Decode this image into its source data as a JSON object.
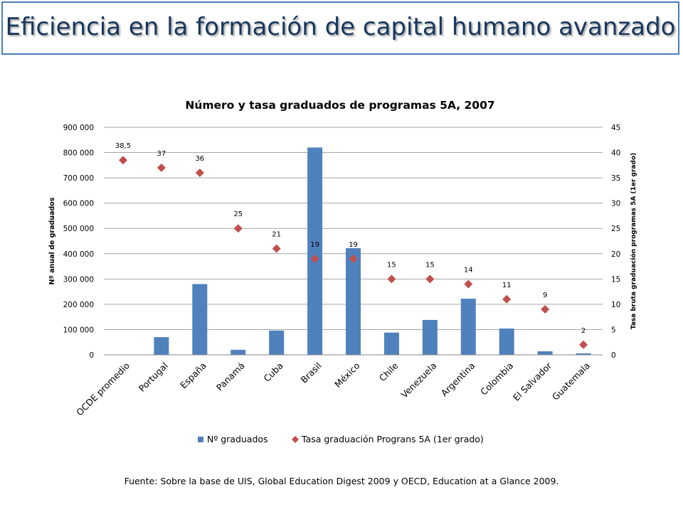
{
  "slide": {
    "title": "Eficiencia en la formación de capital humano avanzado",
    "source": "Fuente: Sobre la base de UIS, Global Education Digest 2009 y OECD, Education at a Glance 2009."
  },
  "colors": {
    "title_text": "#17375e",
    "banner_border": "#4a7ebb",
    "bar": "#4f81bd",
    "marker": "#c0504d",
    "grid": "#a6a6a6"
  },
  "chart_data": {
    "type": "bar",
    "title": "Número y tasa graduados de programas 5A, 2007",
    "ylabel": "Nº anual de graduados",
    "y2label": "Tasa bruta graduación programas 5A (1er grado)",
    "ylim": [
      0,
      900000
    ],
    "y2lim": [
      0,
      45
    ],
    "yticks": [
      "0",
      "100 000",
      "200 000",
      "300 000",
      "400 000",
      "500 000",
      "600 000",
      "700 000",
      "800 000",
      "900 000"
    ],
    "y2ticks": [
      "0",
      "5",
      "10",
      "15",
      "20",
      "25",
      "30",
      "35",
      "40",
      "45"
    ],
    "grid": true,
    "legend_position": "bottom",
    "categories": [
      "OCDE promedio",
      "Portugal",
      "España",
      "Panamá",
      "Cuba",
      "Brasil",
      "México",
      "Chile",
      "Venezuela",
      "Argentina",
      "Colombia",
      "El Salvador",
      "Guatemala"
    ],
    "series": [
      {
        "name": "Nº graduados",
        "type": "bar",
        "axis": "left",
        "values": [
          0,
          70000,
          280000,
          20000,
          96000,
          820000,
          422000,
          88000,
          138000,
          222000,
          104000,
          14000,
          6000
        ]
      },
      {
        "name": "Tasa graduación Prograns  5A (1er grado)",
        "type": "scatter",
        "axis": "right",
        "values": [
          38.5,
          37,
          36,
          25,
          21,
          19,
          19,
          15,
          15,
          14,
          11,
          9,
          2
        ],
        "labels": [
          "38,5",
          "37",
          "36",
          "25",
          "21",
          "19",
          "19",
          "15",
          "15",
          "14",
          "11",
          "9",
          "2"
        ]
      }
    ]
  }
}
